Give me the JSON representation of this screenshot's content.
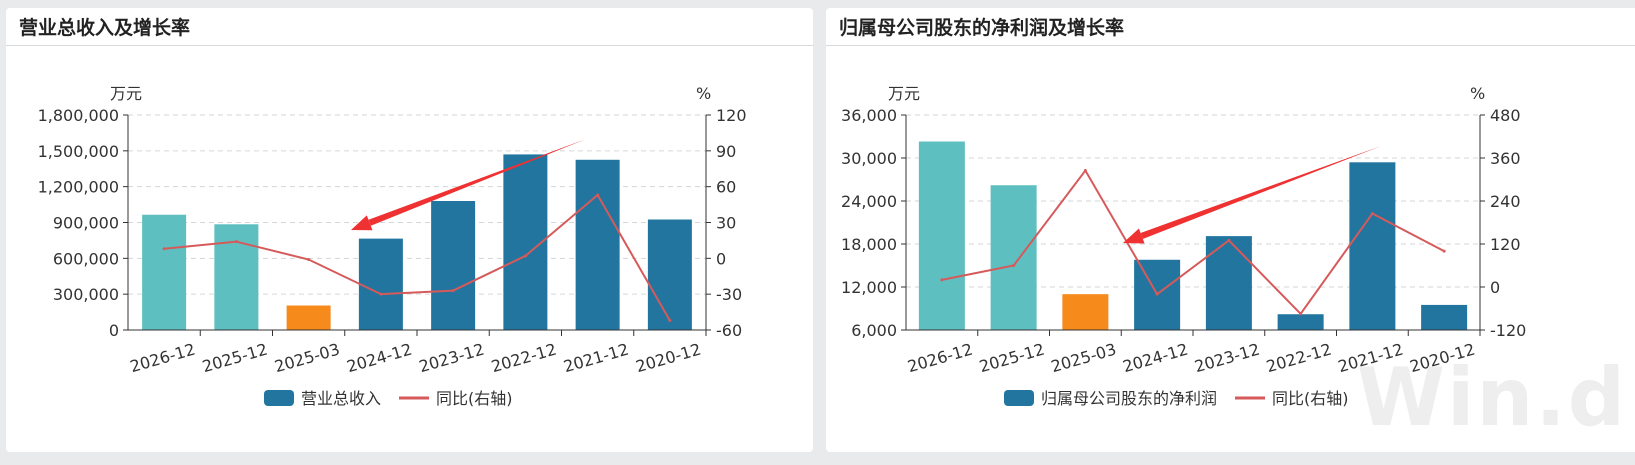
{
  "colors": {
    "forecast_bar": "#5ebfc0",
    "quarter_bar": "#f68a1b",
    "actual_bar": "#21759f",
    "line": "#d65a5a",
    "arrow": "#ef3131",
    "grid": "#d3d6da",
    "axis": "#333333"
  },
  "panels": [
    {
      "title": "营业总收入及增长率",
      "chart_data": {
        "type": "bar",
        "categories": [
          "2026-12",
          "2025-12",
          "2025-03",
          "2024-12",
          "2023-12",
          "2022-12",
          "2021-12",
          "2020-12"
        ],
        "bar_kinds": [
          "forecast",
          "forecast",
          "quarter",
          "actual",
          "actual",
          "actual",
          "actual",
          "actual"
        ],
        "series": [
          {
            "name": "营业总收入",
            "axis": "left",
            "type": "bar",
            "values": [
              965000,
              885000,
              205000,
              765000,
              1080000,
              1470000,
              1425000,
              925000
            ]
          },
          {
            "name": "同比(右轴)",
            "axis": "right",
            "type": "line",
            "values": [
              8,
              14,
              -1,
              -30,
              -27,
              2,
              53,
              -52
            ]
          }
        ],
        "left_axis": {
          "unit": "万元",
          "ticks": [
            "1,800,000",
            "1,500,000",
            "1,200,000",
            "900,000",
            "600,000",
            "300,000",
            "0"
          ],
          "ylim": [
            0,
            1800000
          ]
        },
        "right_axis": {
          "unit": "%",
          "ticks": [
            "120",
            "90",
            "60",
            "30",
            "0",
            "-30",
            "-60"
          ],
          "ylim": [
            -60,
            120
          ]
        },
        "grid": true,
        "legend_position": "bottom",
        "annotation": "red arrow pointing down-left from the 2022-12 bar toward the 2024-12 bar"
      }
    },
    {
      "title": "归属母公司股东的净利润及增长率",
      "chart_data": {
        "type": "bar",
        "categories": [
          "2026-12",
          "2025-12",
          "2025-03",
          "2024-12",
          "2023-12",
          "2022-12",
          "2021-12",
          "2020-12"
        ],
        "bar_kinds": [
          "forecast",
          "forecast",
          "quarter",
          "actual",
          "actual",
          "actual",
          "actual",
          "actual"
        ],
        "series": [
          {
            "name": "归属母公司股东的净利润",
            "axis": "left",
            "type": "bar",
            "values": [
              32300,
              26200,
              11000,
              15800,
              19100,
              8200,
              29400,
              9500
            ]
          },
          {
            "name": "同比(右轴)",
            "axis": "right",
            "type": "line",
            "values": [
              20,
              60,
              325,
              -20,
              130,
              -75,
              205,
              100
            ]
          }
        ],
        "left_axis": {
          "unit": "万元",
          "ticks": [
            "36,000",
            "30,000",
            "24,000",
            "18,000",
            "12,000",
            "6,000"
          ],
          "ylim": [
            6000,
            36000
          ]
        },
        "right_axis": {
          "unit": "%",
          "ticks": [
            "480",
            "360",
            "240",
            "120",
            "0",
            "-120"
          ],
          "ylim": [
            -120,
            480
          ]
        },
        "grid": true,
        "legend_position": "bottom",
        "annotation": "red arrow pointing down-left toward the 2024-12 bar"
      }
    }
  ],
  "watermark": "Win.d"
}
